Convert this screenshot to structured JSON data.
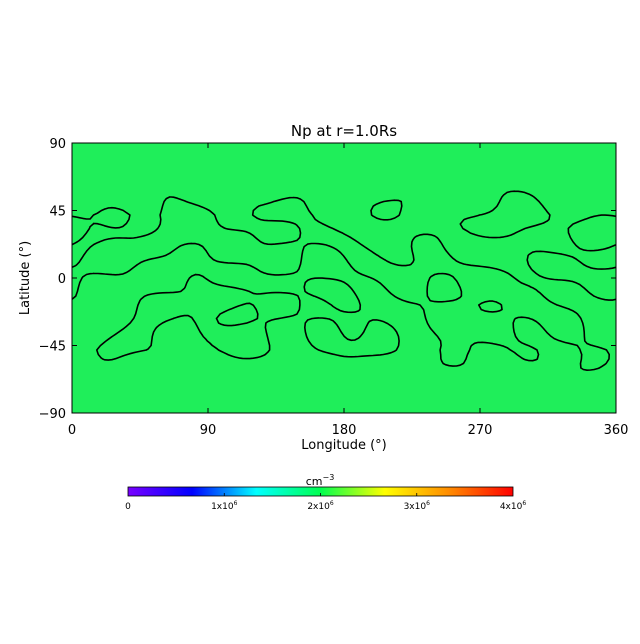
{
  "chart_data": {
    "type": "heatmap",
    "title": "Np at r=1.0Rs",
    "xlabel": "Longitude (°)",
    "ylabel": "Latitude (°)",
    "xlim": [
      0,
      360
    ],
    "ylim": [
      -90,
      90
    ],
    "x_ticks": [
      0,
      90,
      180,
      270,
      360
    ],
    "y_ticks": [
      -90,
      -45,
      0,
      45,
      90
    ],
    "x_tick_labels": [
      "0",
      "90",
      "180",
      "270",
      "360"
    ],
    "y_tick_labels": [
      "−90",
      "−45",
      "0",
      "45",
      "90"
    ],
    "field_color": "#1fee5a",
    "contour_color": "#000000",
    "contour_band_lat": [
      -60,
      55
    ],
    "colorbar": {
      "unit_base": "cm",
      "unit_exp": "−3",
      "range": [
        0,
        4000000
      ],
      "tick_values": [
        0,
        1000000,
        2000000,
        3000000,
        4000000
      ],
      "tick_labels": [
        {
          "mant": "0",
          "exp": ""
        },
        {
          "mant": "1x10",
          "exp": "6"
        },
        {
          "mant": "2x10",
          "exp": "6"
        },
        {
          "mant": "3x10",
          "exp": "6"
        },
        {
          "mant": "4x10",
          "exp": "6"
        }
      ],
      "colors": [
        "#7800ff",
        "#0000ff",
        "#00ffff",
        "#00ff50",
        "#ffff00",
        "#ff8c00",
        "#ff0000"
      ]
    }
  }
}
